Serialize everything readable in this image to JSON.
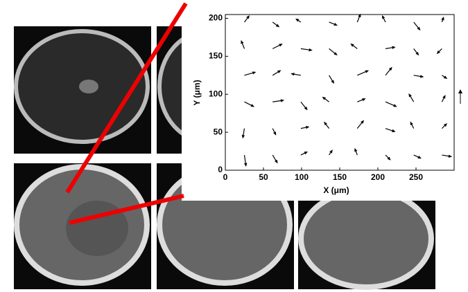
{
  "chart_data": {
    "type": "quiver",
    "xlabel": "X (μm)",
    "ylabel": "Y (μm)",
    "xlim": [
      0,
      300
    ],
    "ylim": [
      0,
      205
    ],
    "xticks": [
      0,
      50,
      100,
      150,
      200,
      250
    ],
    "yticks": [
      0,
      50,
      100,
      150,
      200
    ],
    "color": "#000000",
    "x": [
      25,
      62,
      99,
      136,
      173,
      210,
      247,
      284,
      25,
      62,
      99,
      136,
      173,
      210,
      247,
      284,
      25,
      62,
      99,
      136,
      173,
      210,
      247,
      284,
      25,
      62,
      99,
      136,
      173,
      210,
      247,
      284,
      25,
      62,
      99,
      136,
      173,
      210,
      247,
      284,
      25,
      62,
      99,
      136,
      173,
      210,
      247,
      284
    ],
    "y": [
      20,
      20,
      20,
      20,
      20,
      20,
      20,
      20,
      55,
      55,
      55,
      55,
      55,
      55,
      55,
      55,
      90,
      90,
      90,
      90,
      90,
      90,
      90,
      90,
      125,
      125,
      125,
      125,
      125,
      125,
      125,
      125,
      160,
      160,
      160,
      160,
      160,
      160,
      160,
      160,
      195,
      195,
      195,
      195,
      195,
      195,
      195,
      195
    ],
    "u": [
      2,
      6,
      8,
      4,
      -3,
      6,
      9,
      12,
      -2,
      4,
      10,
      -6,
      8,
      12,
      -4,
      6,
      12,
      14,
      8,
      -8,
      10,
      14,
      -6,
      4,
      14,
      10,
      -12,
      6,
      14,
      8,
      12,
      6,
      -4,
      12,
      14,
      10,
      -8,
      12,
      6,
      -6,
      6,
      8,
      -6,
      10,
      4,
      -4,
      8,
      2
    ],
    "v": [
      -14,
      -10,
      4,
      6,
      8,
      -6,
      -4,
      -2,
      -12,
      -8,
      2,
      8,
      10,
      -4,
      8,
      6,
      -6,
      2,
      -10,
      6,
      4,
      -6,
      10,
      8,
      4,
      6,
      2,
      -10,
      6,
      10,
      -2,
      -4,
      10,
      6,
      -2,
      -8,
      6,
      2,
      -8,
      -6,
      8,
      -6,
      4,
      -4,
      10,
      8,
      -10,
      6
    ]
  }
}
